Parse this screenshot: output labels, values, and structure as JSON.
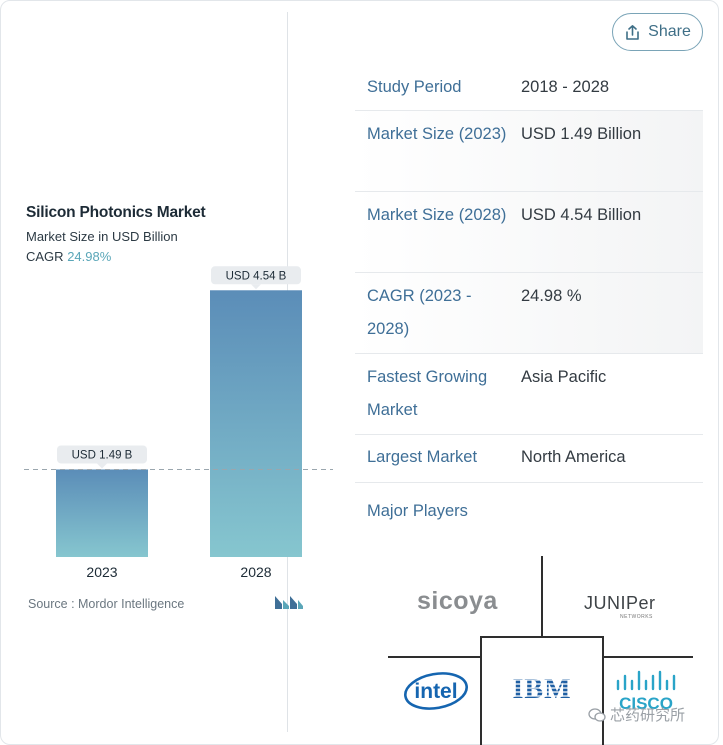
{
  "share": {
    "label": "Share"
  },
  "chart": {
    "title": "Silicon Photonics Market",
    "subtitle": "Market Size in USD Billion",
    "cagr_label": "CAGR",
    "cagr_value": "24.98%",
    "source": "Source :  Mordor Intelligence"
  },
  "chart_data": {
    "type": "bar",
    "title": "Silicon Photonics Market",
    "ylabel": "Market Size in USD Billion",
    "categories": [
      "2023",
      "2028"
    ],
    "values": [
      1.49,
      4.54
    ],
    "data_labels": [
      "USD 1.49 B",
      "USD 4.54 B"
    ],
    "ylim": [
      0,
      4.8
    ],
    "colors": {
      "top": "#5b8db8",
      "bottom": "#86c6cf"
    }
  },
  "table": {
    "rows": [
      {
        "key": "Study Period",
        "value": "2018 - 2028"
      },
      {
        "key": "Market Size (2023)",
        "value": "USD 1.49 Billion"
      },
      {
        "key": "Market Size (2028)",
        "value": "USD 4.54 Billion"
      },
      {
        "key": "CAGR (2023 - 2028)",
        "value": "24.98 %"
      },
      {
        "key": "Fastest Growing Market",
        "value": "Asia Pacific"
      },
      {
        "key": "Largest Market",
        "value": "North America"
      },
      {
        "key": "Major Players",
        "value": ""
      }
    ]
  },
  "players": {
    "sicoya": "sicoya",
    "juniper": "JUNIPer",
    "juniper_sub": "NETWORKS",
    "intel": "intel",
    "ibm": "IBM",
    "cisco": "CISCO"
  },
  "watermark": "芯药研究所",
  "colors": {
    "accent": "#3f6f97",
    "bar_top": "#5b8db8",
    "bar_bottom": "#86c6cf"
  }
}
